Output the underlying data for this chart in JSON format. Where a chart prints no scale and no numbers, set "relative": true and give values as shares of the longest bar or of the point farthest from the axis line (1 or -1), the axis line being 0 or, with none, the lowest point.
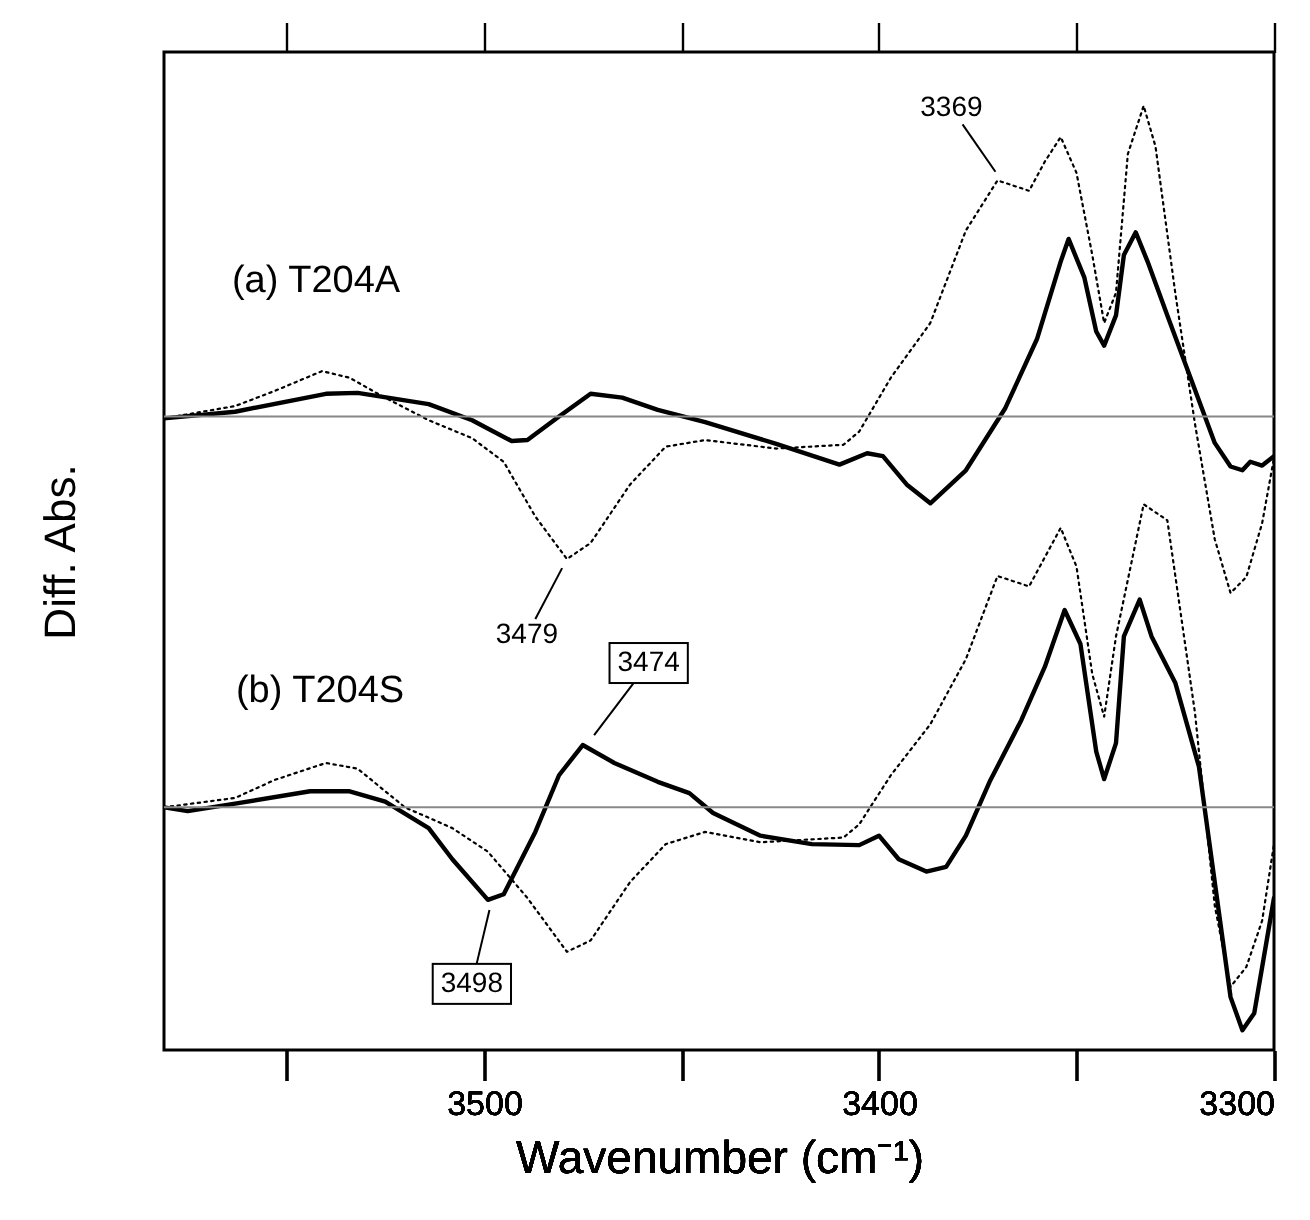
{
  "chart_data": {
    "type": "line",
    "relative": true,
    "xlabel": "Wavenumber (cm⁻¹)",
    "ylabel": "Diff. Abs.",
    "xlim": [
      3581,
      3300
    ],
    "xticks": [
      {
        "value": 3550,
        "label": null
      },
      3500,
      {
        "value": 3450,
        "label": null
      },
      3400,
      {
        "value": 3350,
        "label": null
      },
      3300
    ],
    "series": [
      {
        "color": "#000000",
        "line_style": "solid",
        "x": [
          3581,
          3563,
          3540,
          3532,
          3514,
          3503,
          3493,
          3489,
          3481,
          3473,
          3465,
          3456,
          3444,
          3426,
          3410,
          3403,
          3399,
          3393,
          3387,
          3378,
          3368,
          3360,
          3354,
          3352,
          3348,
          3345,
          3343,
          3340,
          3338,
          3335,
          3332,
          3327,
          3319,
          3315,
          3311,
          3308,
          3306,
          3303,
          3300
        ],
        "values": [
          0.669,
          0.676,
          0.695,
          0.696,
          0.684,
          0.667,
          0.645,
          0.646,
          0.671,
          0.695,
          0.691,
          0.678,
          0.665,
          0.642,
          0.62,
          0.632,
          0.629,
          0.599,
          0.579,
          0.614,
          0.68,
          0.753,
          0.835,
          0.859,
          0.818,
          0.761,
          0.746,
          0.778,
          0.842,
          0.866,
          0.835,
          0.778,
          0.688,
          0.643,
          0.618,
          0.614,
          0.623,
          0.619,
          0.629
        ]
      },
      {
        "color": "#000000",
        "line_style": "dotted",
        "x": [
          3581,
          3563,
          3553,
          3541,
          3534,
          3526,
          3514,
          3503,
          3495,
          3487,
          3479,
          3473,
          3463,
          3454,
          3444,
          3426,
          3409,
          3405,
          3397,
          3387,
          3378,
          3370,
          3362,
          3358,
          3354,
          3350,
          3346,
          3343,
          3340,
          3337,
          3333,
          3330,
          3325,
          3320,
          3315,
          3311,
          3307,
          3303,
          3300
        ],
        "values": [
          0.669,
          0.682,
          0.698,
          0.719,
          0.712,
          0.693,
          0.667,
          0.648,
          0.623,
          0.565,
          0.52,
          0.537,
          0.599,
          0.639,
          0.646,
          0.637,
          0.641,
          0.655,
          0.712,
          0.77,
          0.868,
          0.921,
          0.91,
          0.941,
          0.967,
          0.929,
          0.842,
          0.77,
          0.802,
          0.949,
          1.0,
          0.957,
          0.802,
          0.663,
          0.541,
          0.484,
          0.501,
          0.558,
          0.627
        ]
      },
      {
        "color": "#000000",
        "line_style": "solid",
        "x": [
          3581,
          3575,
          3563,
          3544,
          3534,
          3525,
          3514,
          3508,
          3499,
          3495,
          3487,
          3481,
          3475,
          3467,
          3456,
          3448,
          3442,
          3430,
          3417,
          3405,
          3400,
          3395,
          3388,
          3383,
          3378,
          3372,
          3364,
          3358,
          3353,
          3349,
          3345,
          3343,
          3340,
          3338,
          3334,
          3331,
          3325,
          3319,
          3315,
          3311,
          3308,
          3305,
          3300
        ],
        "values": [
          0.257,
          0.253,
          0.261,
          0.274,
          0.274,
          0.263,
          0.235,
          0.202,
          0.159,
          0.165,
          0.231,
          0.291,
          0.323,
          0.304,
          0.284,
          0.272,
          0.251,
          0.227,
          0.218,
          0.217,
          0.227,
          0.202,
          0.189,
          0.194,
          0.227,
          0.284,
          0.349,
          0.406,
          0.466,
          0.43,
          0.316,
          0.287,
          0.325,
          0.438,
          0.477,
          0.438,
          0.389,
          0.3,
          0.178,
          0.056,
          0.021,
          0.039,
          0.161
        ]
      },
      {
        "color": "#000000",
        "line_style": "dotted",
        "x": [
          3581,
          3563,
          3553,
          3540,
          3532,
          3520,
          3508,
          3499,
          3489,
          3479,
          3473,
          3463,
          3454,
          3444,
          3430,
          3409,
          3405,
          3397,
          3387,
          3378,
          3370,
          3362,
          3354,
          3350,
          3346,
          3343,
          3340,
          3333,
          3327,
          3320,
          3315,
          3311,
          3307,
          3303,
          3300
        ],
        "values": [
          0.257,
          0.267,
          0.286,
          0.304,
          0.298,
          0.257,
          0.235,
          0.21,
          0.161,
          0.104,
          0.116,
          0.178,
          0.218,
          0.231,
          0.22,
          0.225,
          0.239,
          0.291,
          0.345,
          0.414,
          0.502,
          0.491,
          0.553,
          0.512,
          0.398,
          0.353,
          0.438,
          0.578,
          0.561,
          0.357,
          0.153,
          0.067,
          0.088,
          0.137,
          0.218
        ]
      }
    ],
    "ref_lines": [
      {
        "axis": "y",
        "value": 0.671,
        "color": "#888888"
      },
      {
        "axis": "y",
        "value": 0.257,
        "color": "#888888"
      }
    ],
    "annotations": [
      "(a) T204A",
      "(b) T204S",
      {
        "text": "3369",
        "x": 3369,
        "y": 0.921
      },
      {
        "text": "3479",
        "x": 3479,
        "y": 0.52
      },
      {
        "text": "3474",
        "x": 3474,
        "y": 0.323
      },
      {
        "text": "3498",
        "x": 3498,
        "y": 0.159
      }
    ]
  }
}
